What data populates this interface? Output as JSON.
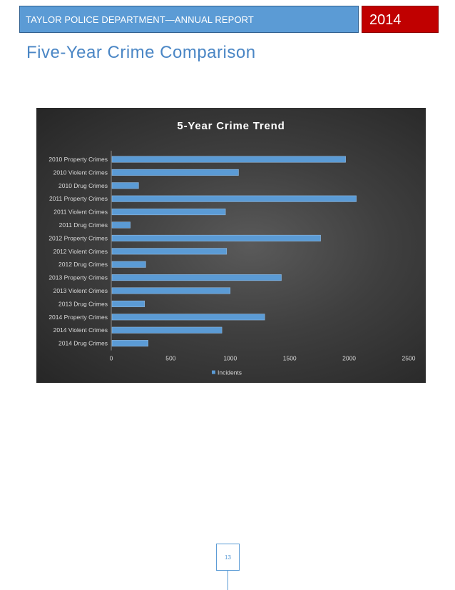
{
  "header": {
    "title": "TAYLOR POLICE DEPARTMENT—ANNUAL REPORT",
    "year": "2014",
    "title_bg": "#5b9bd5",
    "year_bg": "#c00000"
  },
  "page_title": "Five-Year Crime Comparison",
  "footer": {
    "page_number": "13"
  },
  "chart_data": {
    "type": "bar",
    "orientation": "horizontal",
    "title": "5-Year Crime Trend",
    "categories": [
      "2010 Property Crimes",
      "2010 Violent Crimes",
      "2010 Drug Crimes",
      "2011 Property Crimes",
      "2011 Violent Crimes",
      "2011 Drug Crimes",
      "2012 Property Crimes",
      "2012 Violent Crimes",
      "2012 Drug Crimes",
      "2013 Property Crimes",
      "2013 Violent Crimes",
      "2013 Drug Crimes",
      "2014 Property Crimes",
      "2014 Violent Crimes",
      "2014 Drug Crimes"
    ],
    "series": [
      {
        "name": "Incidents",
        "color": "#5b9bd5",
        "values": [
          1970,
          1070,
          230,
          2060,
          960,
          160,
          1760,
          970,
          290,
          1430,
          1000,
          280,
          1290,
          930,
          310
        ]
      }
    ],
    "xlim": [
      0,
      2500
    ],
    "xticks": [
      "0",
      "500",
      "1000",
      "1500",
      "2000",
      "2500"
    ],
    "grid": false,
    "legend": "bottom",
    "background": "dark"
  }
}
